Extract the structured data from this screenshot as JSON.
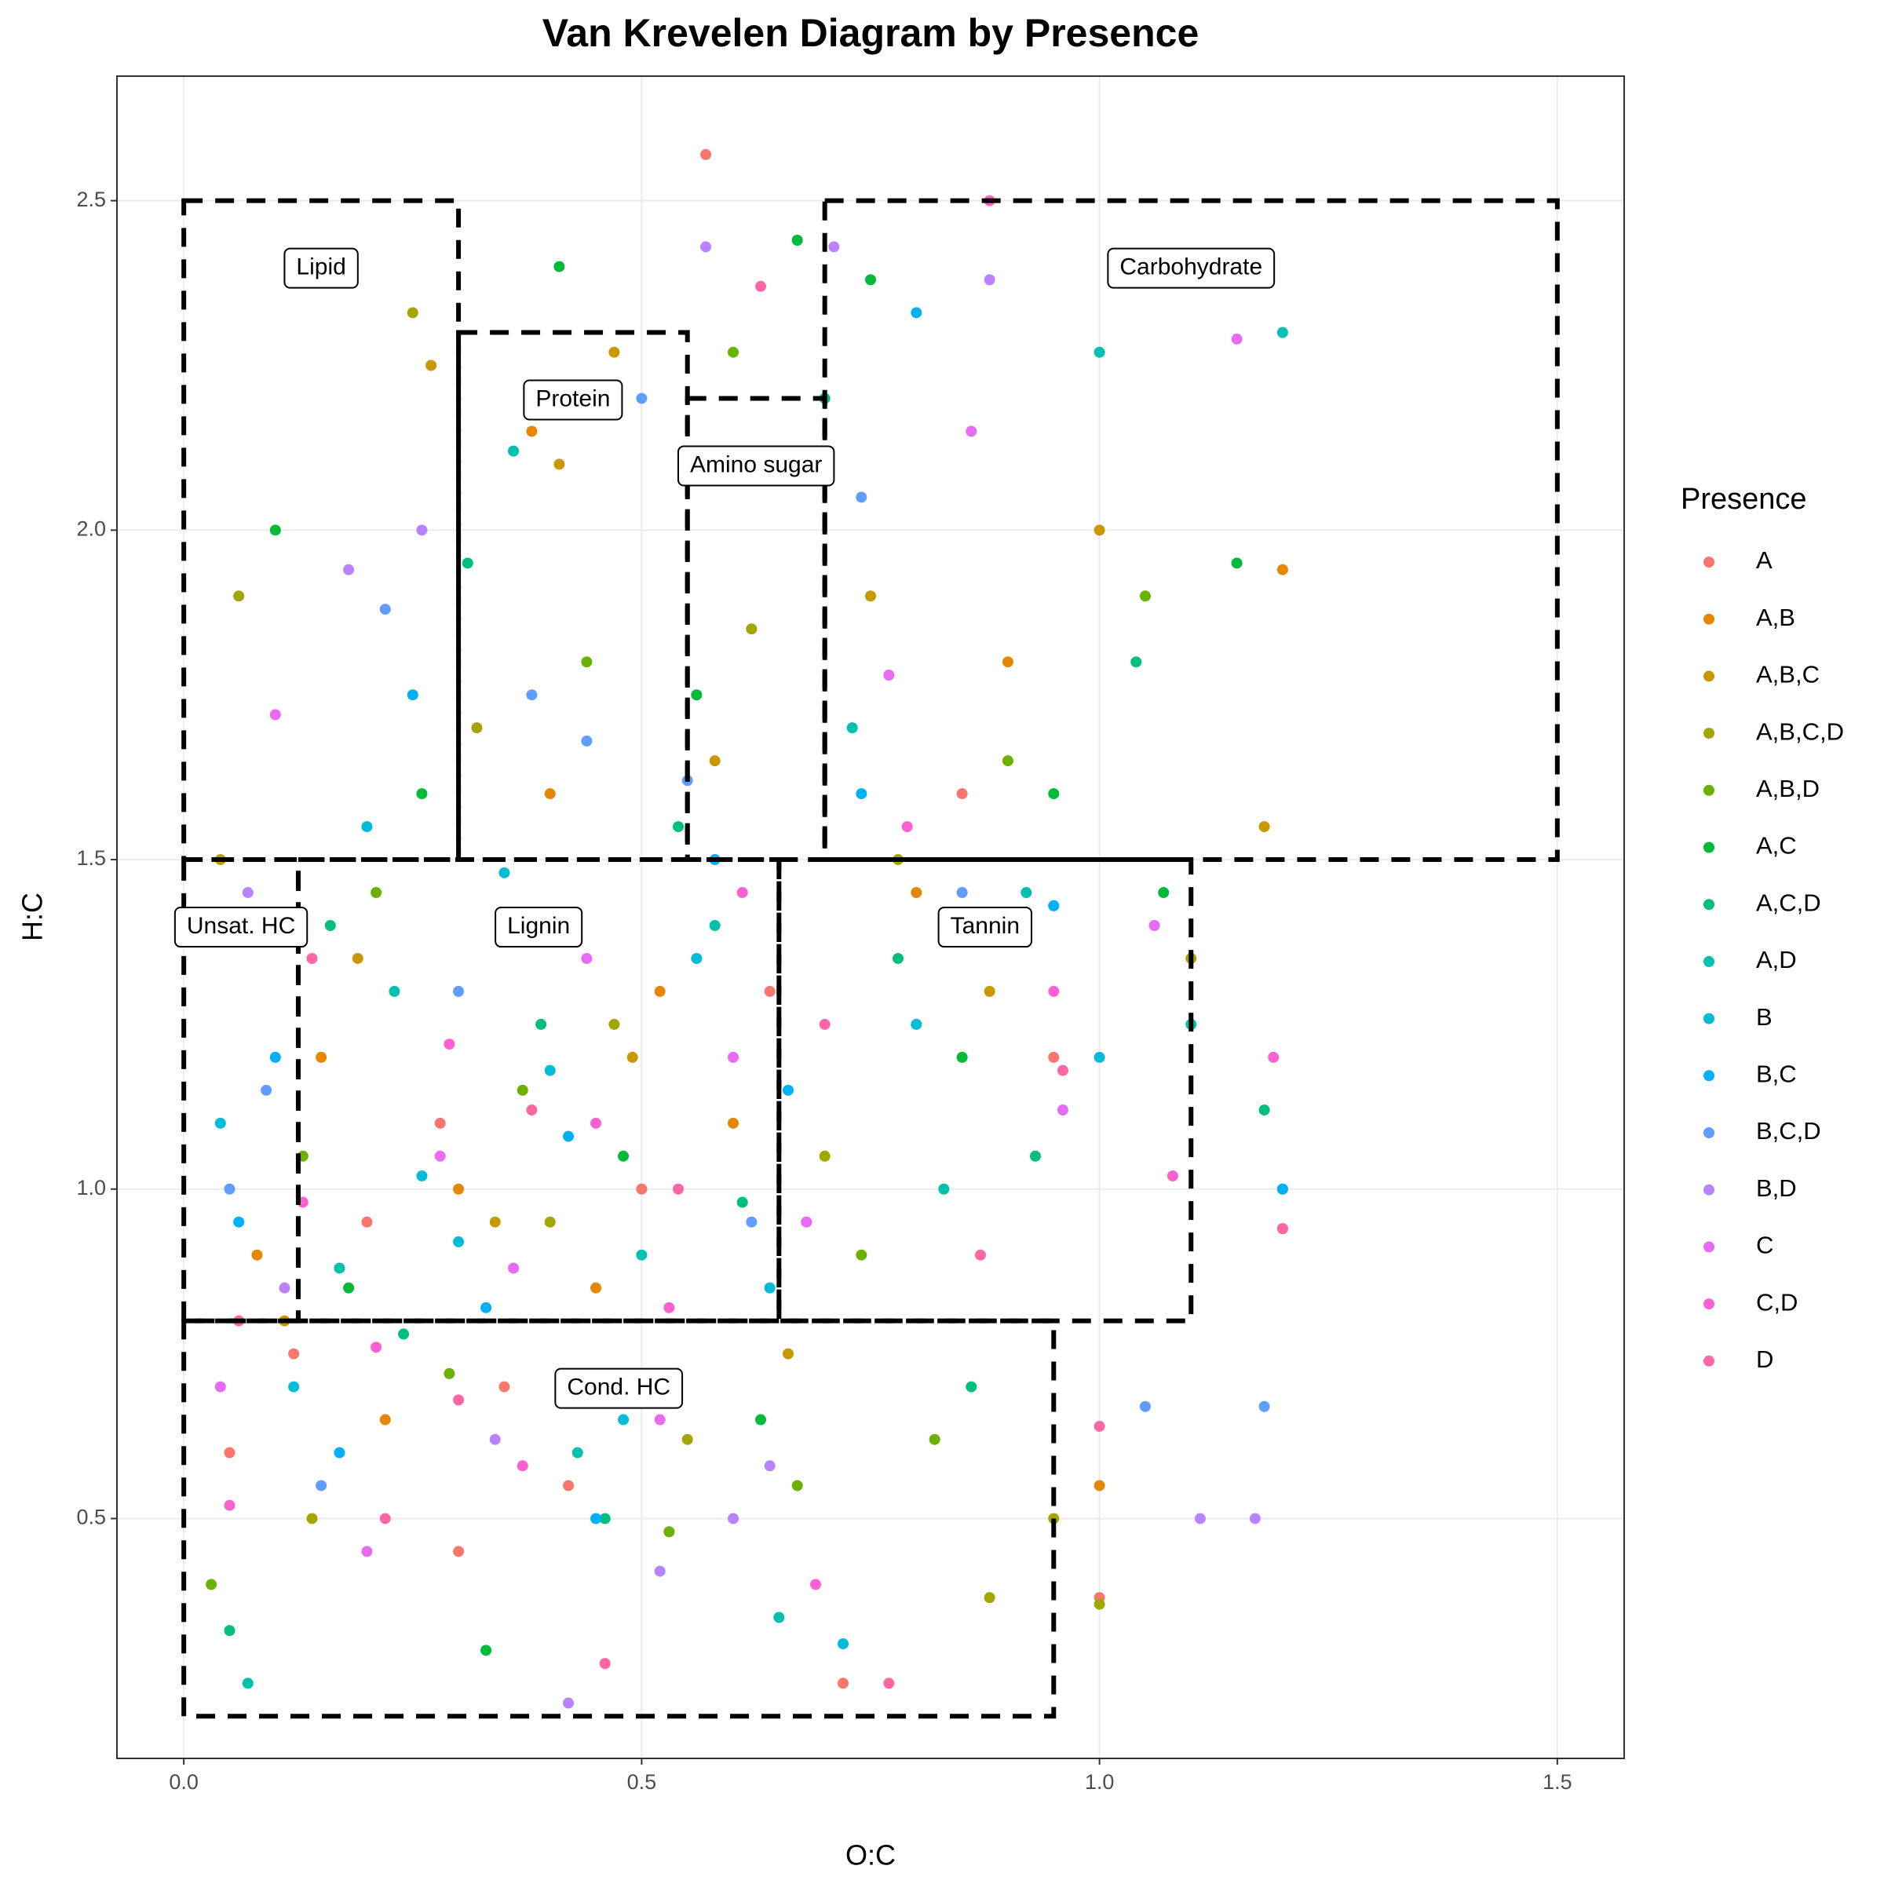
{
  "chart_data": {
    "type": "scatter",
    "title": "Van Krevelen Diagram by Presence",
    "x_label": "O:C",
    "y_label": "H:C",
    "legend_title": "Presence",
    "legend": "right",
    "grid": true,
    "xlim": [
      -0.073,
      1.573
    ],
    "ylim": [
      0.136,
      2.689
    ],
    "xticks": [
      {
        "value": 0,
        "label": "0.0"
      },
      0.5,
      {
        "value": 1,
        "label": "1.0"
      },
      1.5
    ],
    "yticks": [
      0.5,
      {
        "value": 1,
        "label": "1.0"
      },
      1.5,
      {
        "value": 2,
        "label": "2.0"
      },
      2.5
    ],
    "series": [
      {
        "name": "A",
        "color": "#F8766D",
        "x": [
          0.05,
          0.12,
          0.2,
          0.28,
          0.35,
          0.42,
          0.5,
          0.57,
          0.64,
          0.72,
          0.85,
          0.95,
          1.0,
          1.2,
          0.1,
          0.3
        ],
        "y": [
          0.6,
          0.75,
          0.95,
          1.1,
          0.7,
          0.55,
          1.0,
          2.57,
          1.3,
          0.25,
          1.6,
          1.2,
          0.38,
          0.94,
          1.4,
          0.45
        ]
      },
      {
        "name": "A,B",
        "color": "#E58700",
        "x": [
          0.08,
          0.15,
          0.22,
          0.3,
          0.38,
          0.45,
          0.52,
          0.6,
          0.68,
          0.8,
          0.9,
          1.0,
          1.2,
          0.4
        ],
        "y": [
          0.9,
          1.2,
          0.65,
          1.0,
          2.15,
          0.85,
          1.3,
          1.1,
          0.95,
          1.45,
          1.8,
          0.55,
          1.94,
          1.6
        ]
      },
      {
        "name": "A,B,C",
        "color": "#C99800",
        "x": [
          0.04,
          0.11,
          0.19,
          0.27,
          0.34,
          0.41,
          0.49,
          0.58,
          0.66,
          0.75,
          0.88,
          1.0,
          1.18,
          0.47
        ],
        "y": [
          1.5,
          0.8,
          1.35,
          2.25,
          0.95,
          2.1,
          1.2,
          1.65,
          0.75,
          1.9,
          1.3,
          2.0,
          1.55,
          2.27
        ]
      },
      {
        "name": "A,B,C,D",
        "color": "#A3A500",
        "x": [
          0.06,
          0.14,
          0.25,
          0.32,
          0.4,
          0.47,
          0.55,
          0.62,
          0.7,
          0.78,
          0.88,
          0.95,
          1.0,
          1.1
        ],
        "y": [
          1.9,
          0.5,
          2.33,
          1.7,
          0.95,
          1.25,
          0.62,
          1.85,
          1.05,
          1.5,
          0.38,
          0.5,
          0.37,
          1.35
        ]
      },
      {
        "name": "A,B,D",
        "color": "#6BB100",
        "x": [
          0.03,
          0.13,
          0.21,
          0.29,
          0.37,
          0.44,
          0.53,
          0.6,
          0.67,
          0.74,
          0.82,
          0.9,
          1.05,
          1.2
        ],
        "y": [
          0.4,
          1.05,
          1.45,
          0.72,
          1.15,
          1.8,
          0.48,
          2.27,
          0.55,
          0.9,
          0.62,
          1.65,
          1.9,
          1.0
        ]
      },
      {
        "name": "A,C",
        "color": "#00BA38",
        "x": [
          0.1,
          0.18,
          0.26,
          0.33,
          0.41,
          0.48,
          0.56,
          0.63,
          0.67,
          0.75,
          0.85,
          0.95,
          1.07,
          1.15
        ],
        "y": [
          2.0,
          0.85,
          1.6,
          0.3,
          2.4,
          1.05,
          1.75,
          0.65,
          2.44,
          2.38,
          1.2,
          1.6,
          1.45,
          1.95
        ]
      },
      {
        "name": "A,C,D",
        "color": "#00BF7D",
        "x": [
          0.05,
          0.16,
          0.24,
          0.31,
          0.39,
          0.46,
          0.54,
          0.61,
          0.7,
          0.78,
          0.86,
          0.93,
          1.04,
          1.18
        ],
        "y": [
          0.33,
          1.4,
          0.78,
          1.95,
          1.25,
          0.5,
          1.55,
          0.98,
          2.2,
          1.35,
          0.7,
          1.05,
          1.8,
          1.12
        ]
      },
      {
        "name": "A,D",
        "color": "#00C0AF",
        "x": [
          0.07,
          0.17,
          0.23,
          0.36,
          0.43,
          0.5,
          0.58,
          0.65,
          0.73,
          0.83,
          0.92,
          1.0,
          1.1,
          1.2
        ],
        "y": [
          0.25,
          0.88,
          1.3,
          2.12,
          0.6,
          0.9,
          1.4,
          0.35,
          1.7,
          1.0,
          1.45,
          2.27,
          1.25,
          2.3
        ]
      },
      {
        "name": "B",
        "color": "#00BCD8",
        "x": [
          0.04,
          0.12,
          0.2,
          0.3,
          0.4,
          0.48,
          0.56,
          0.64,
          0.72,
          0.8,
          0.95,
          1.0,
          0.26,
          0.35
        ],
        "y": [
          1.1,
          0.7,
          1.55,
          0.92,
          1.18,
          0.65,
          1.35,
          0.85,
          0.31,
          1.25,
          1.43,
          1.2,
          1.02,
          1.48
        ]
      },
      {
        "name": "B,C",
        "color": "#00B0F6",
        "x": [
          0.06,
          0.1,
          0.17,
          0.25,
          0.33,
          0.42,
          0.5,
          0.58,
          0.66,
          0.74,
          0.8,
          0.95,
          1.2,
          0.45
        ],
        "y": [
          0.95,
          1.2,
          0.6,
          1.75,
          0.82,
          1.08,
          0.72,
          1.5,
          1.15,
          1.6,
          2.33,
          1.43,
          1.0,
          0.5
        ]
      },
      {
        "name": "B,C,D",
        "color": "#619CFF",
        "x": [
          0.05,
          0.09,
          0.15,
          0.22,
          0.3,
          0.38,
          0.44,
          0.5,
          0.55,
          0.62,
          0.74,
          0.85,
          1.05,
          1.18
        ],
        "y": [
          1.0,
          1.15,
          0.55,
          1.88,
          1.3,
          1.75,
          1.68,
          2.2,
          1.62,
          0.95,
          2.05,
          1.45,
          0.67,
          0.67
        ]
      },
      {
        "name": "B,D",
        "color": "#B983FF",
        "x": [
          0.07,
          0.11,
          0.18,
          0.26,
          0.34,
          0.42,
          0.52,
          0.57,
          0.6,
          0.64,
          0.71,
          0.88,
          1.11,
          1.17
        ],
        "y": [
          1.45,
          0.85,
          1.94,
          2.0,
          0.62,
          0.22,
          0.42,
          2.43,
          0.5,
          0.58,
          2.43,
          2.38,
          0.5,
          0.5
        ]
      },
      {
        "name": "C",
        "color": "#E76BF3",
        "x": [
          0.04,
          0.1,
          0.2,
          0.28,
          0.36,
          0.44,
          0.52,
          0.6,
          0.68,
          0.77,
          0.86,
          0.96,
          1.06,
          1.15
        ],
        "y": [
          0.7,
          1.72,
          0.45,
          1.05,
          0.88,
          1.35,
          0.65,
          1.2,
          0.95,
          1.78,
          2.15,
          1.12,
          1.4,
          2.29
        ]
      },
      {
        "name": "C,D",
        "color": "#FD61D1",
        "x": [
          0.05,
          0.13,
          0.21,
          0.29,
          0.37,
          0.45,
          0.53,
          0.61,
          0.69,
          0.79,
          0.88,
          0.95,
          1.08,
          1.19
        ],
        "y": [
          0.52,
          0.98,
          0.76,
          1.22,
          0.58,
          1.1,
          0.82,
          1.45,
          0.4,
          1.55,
          2.5,
          1.3,
          1.02,
          1.2
        ]
      },
      {
        "name": "D",
        "color": "#FF67A4",
        "x": [
          0.06,
          0.14,
          0.22,
          0.3,
          0.38,
          0.46,
          0.54,
          0.63,
          0.7,
          0.77,
          0.87,
          0.96,
          1.0,
          1.2
        ],
        "y": [
          0.8,
          1.35,
          0.5,
          0.68,
          1.12,
          0.28,
          1.0,
          2.37,
          1.25,
          0.25,
          0.9,
          1.18,
          0.64,
          0.94
        ]
      }
    ],
    "regions": [
      {
        "label": "Lipid",
        "x": [
          0,
          0.3
        ],
        "y": [
          1.5,
          2.5
        ]
      },
      {
        "label": "Protein",
        "x": [
          0.3,
          0.55
        ],
        "y": [
          1.5,
          2.3
        ]
      },
      {
        "label": "Amino sugar",
        "x": [
          0.55,
          0.7
        ],
        "y": [
          1.5,
          2.2
        ]
      },
      {
        "label": "Carbohydrate",
        "x": [
          0.7,
          1.5
        ],
        "y": [
          1.5,
          2.5
        ]
      },
      {
        "label": "Unsat. HC",
        "x": [
          0,
          0.125
        ],
        "y": [
          0.8,
          1.5
        ]
      },
      {
        "label": "Lignin",
        "x": [
          0.125,
          0.65
        ],
        "y": [
          0.8,
          1.5
        ]
      },
      {
        "label": "Tannin",
        "x": [
          0.65,
          1.1
        ],
        "y": [
          0.8,
          1.5
        ]
      },
      {
        "label": "Cond. HC",
        "x": [
          0,
          0.95
        ],
        "y": [
          0.2,
          0.8
        ]
      }
    ]
  }
}
